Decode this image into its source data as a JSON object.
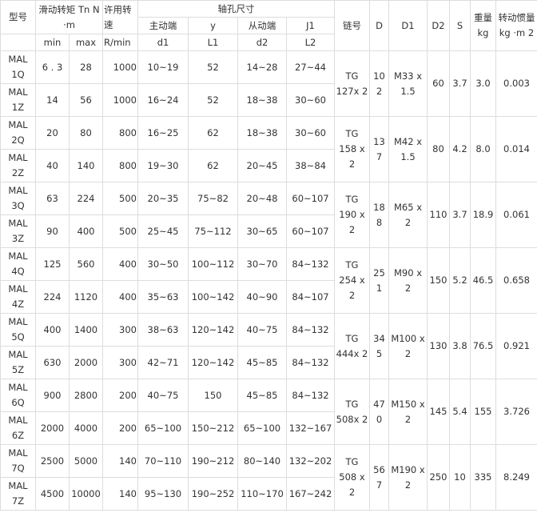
{
  "header": {
    "model": "型号",
    "torque": "滑动转矩 Tn N ·m",
    "speed": "许用转速",
    "bore": "轴孔尺寸",
    "chain": "链号",
    "D": "D",
    "D1": "D1",
    "D2": "D2",
    "S": "S",
    "weight": "重量 kg",
    "inertia": "转动惯量 kg ·m 2",
    "driving": "主动端",
    "y": "y",
    "driven": "从动端",
    "J1": "J1",
    "min": "min",
    "max": "max",
    "rmin": "R/min",
    "d1": "d1",
    "L1": "L1",
    "d2": "d2",
    "L2": "L2"
  },
  "rows": [
    {
      "model": "MAL 1Q",
      "min": "6 . 3",
      "max": "28",
      "speed": "1000",
      "d1": "10~19",
      "L1": "52",
      "d2": "14~28",
      "L2": "27~44"
    },
    {
      "model": "MAL 1Z",
      "min": "14",
      "max": "56",
      "speed": "1000",
      "d1": "16~24",
      "L1": "52",
      "d2": "18~38",
      "L2": "30~60"
    },
    {
      "model": "MAL 2Q",
      "min": "20",
      "max": "80",
      "speed": "800",
      "d1": "16~25",
      "L1": "62",
      "d2": "18~38",
      "L2": "30~60"
    },
    {
      "model": "MAL 2Z",
      "min": "40",
      "max": "140",
      "speed": "800",
      "d1": "19~30",
      "L1": "62",
      "d2": "20~45",
      "L2": "38~84"
    },
    {
      "model": "MAL 3Q",
      "min": "63",
      "max": "224",
      "speed": "500",
      "d1": "20~35",
      "L1": "75~82",
      "d2": "20~48",
      "L2": "60~107"
    },
    {
      "model": "MAL 3Z",
      "min": "90",
      "max": "400",
      "speed": "500",
      "d1": "25~45",
      "L1": "75~112",
      "d2": "30~65",
      "L2": "60~107"
    },
    {
      "model": "MAL 4Q",
      "min": "125",
      "max": "560",
      "speed": "400",
      "d1": "30~50",
      "L1": "100~112",
      "d2": "30~70",
      "L2": "84~132"
    },
    {
      "model": "MAL 4Z",
      "min": "224",
      "max": "1120",
      "speed": "400",
      "d1": "35~63",
      "L1": "100~142",
      "d2": "40~90",
      "L2": "84~107"
    },
    {
      "model": "MAL 5Q",
      "min": "400",
      "max": "1400",
      "speed": "300",
      "d1": "38~63",
      "L1": "120~142",
      "d2": "40~75",
      "L2": "84~132"
    },
    {
      "model": "MAL 5Z",
      "min": "630",
      "max": "2000",
      "speed": "300",
      "d1": "42~71",
      "L1": "120~142",
      "d2": "45~85",
      "L2": "84~132"
    },
    {
      "model": "MAL 6Q",
      "min": "900",
      "max": "2800",
      "speed": "200",
      "d1": "40~75",
      "L1": "150",
      "d2": "45~85",
      "L2": "84~132"
    },
    {
      "model": "MAL 6Z",
      "min": "2000",
      "max": "4000",
      "speed": "200",
      "d1": "65~100",
      "L1": "150~212",
      "d2": "65~100",
      "L2": "132~167"
    },
    {
      "model": "MAL 7Q",
      "min": "2500",
      "max": "5000",
      "speed": "140",
      "d1": "70~110",
      "L1": "190~212",
      "d2": "80~140",
      "L2": "132~202"
    },
    {
      "model": "MAL 7Z",
      "min": "4500",
      "max": "10000",
      "speed": "140",
      "d1": "95~130",
      "L1": "190~252",
      "d2": "110~170",
      "L2": "167~242"
    }
  ],
  "groups": [
    {
      "chain": "TG 127x 2",
      "D": "102",
      "D1": "M33 x 1.5",
      "D2": "60",
      "S": "3.7",
      "weight": "3.0",
      "inertia": "0.003"
    },
    {
      "chain": "TG 158 x 2",
      "D": "137",
      "D1": "M42 x 1.5",
      "D2": "80",
      "S": "4.2",
      "weight": "8.0",
      "inertia": "0.014"
    },
    {
      "chain": "TG 190 x 2",
      "D": "188",
      "D1": "M65 x 2",
      "D2": "110",
      "S": "3.7",
      "weight": "18.9",
      "inertia": "0.061"
    },
    {
      "chain": "TG 254 x 2",
      "D": "251",
      "D1": "M90 x 2",
      "D2": "150",
      "S": "5.2",
      "weight": "46.5",
      "inertia": "0.658"
    },
    {
      "chain": "TG 444x 2",
      "D": "345",
      "D1": "M100 x 2",
      "D2": "130",
      "S": "3.8",
      "weight": "76.5",
      "inertia": "0.921"
    },
    {
      "chain": "TG 508x 2",
      "D": "470",
      "D1": "M150 x 2",
      "D2": "145",
      "S": "5.4",
      "weight": "155",
      "inertia": "3.726"
    },
    {
      "chain": "TG 508 x 2",
      "D": "567",
      "D1": "M190 x 2",
      "D2": "250",
      "S": "10",
      "weight": "335",
      "inertia": "8.249"
    }
  ]
}
